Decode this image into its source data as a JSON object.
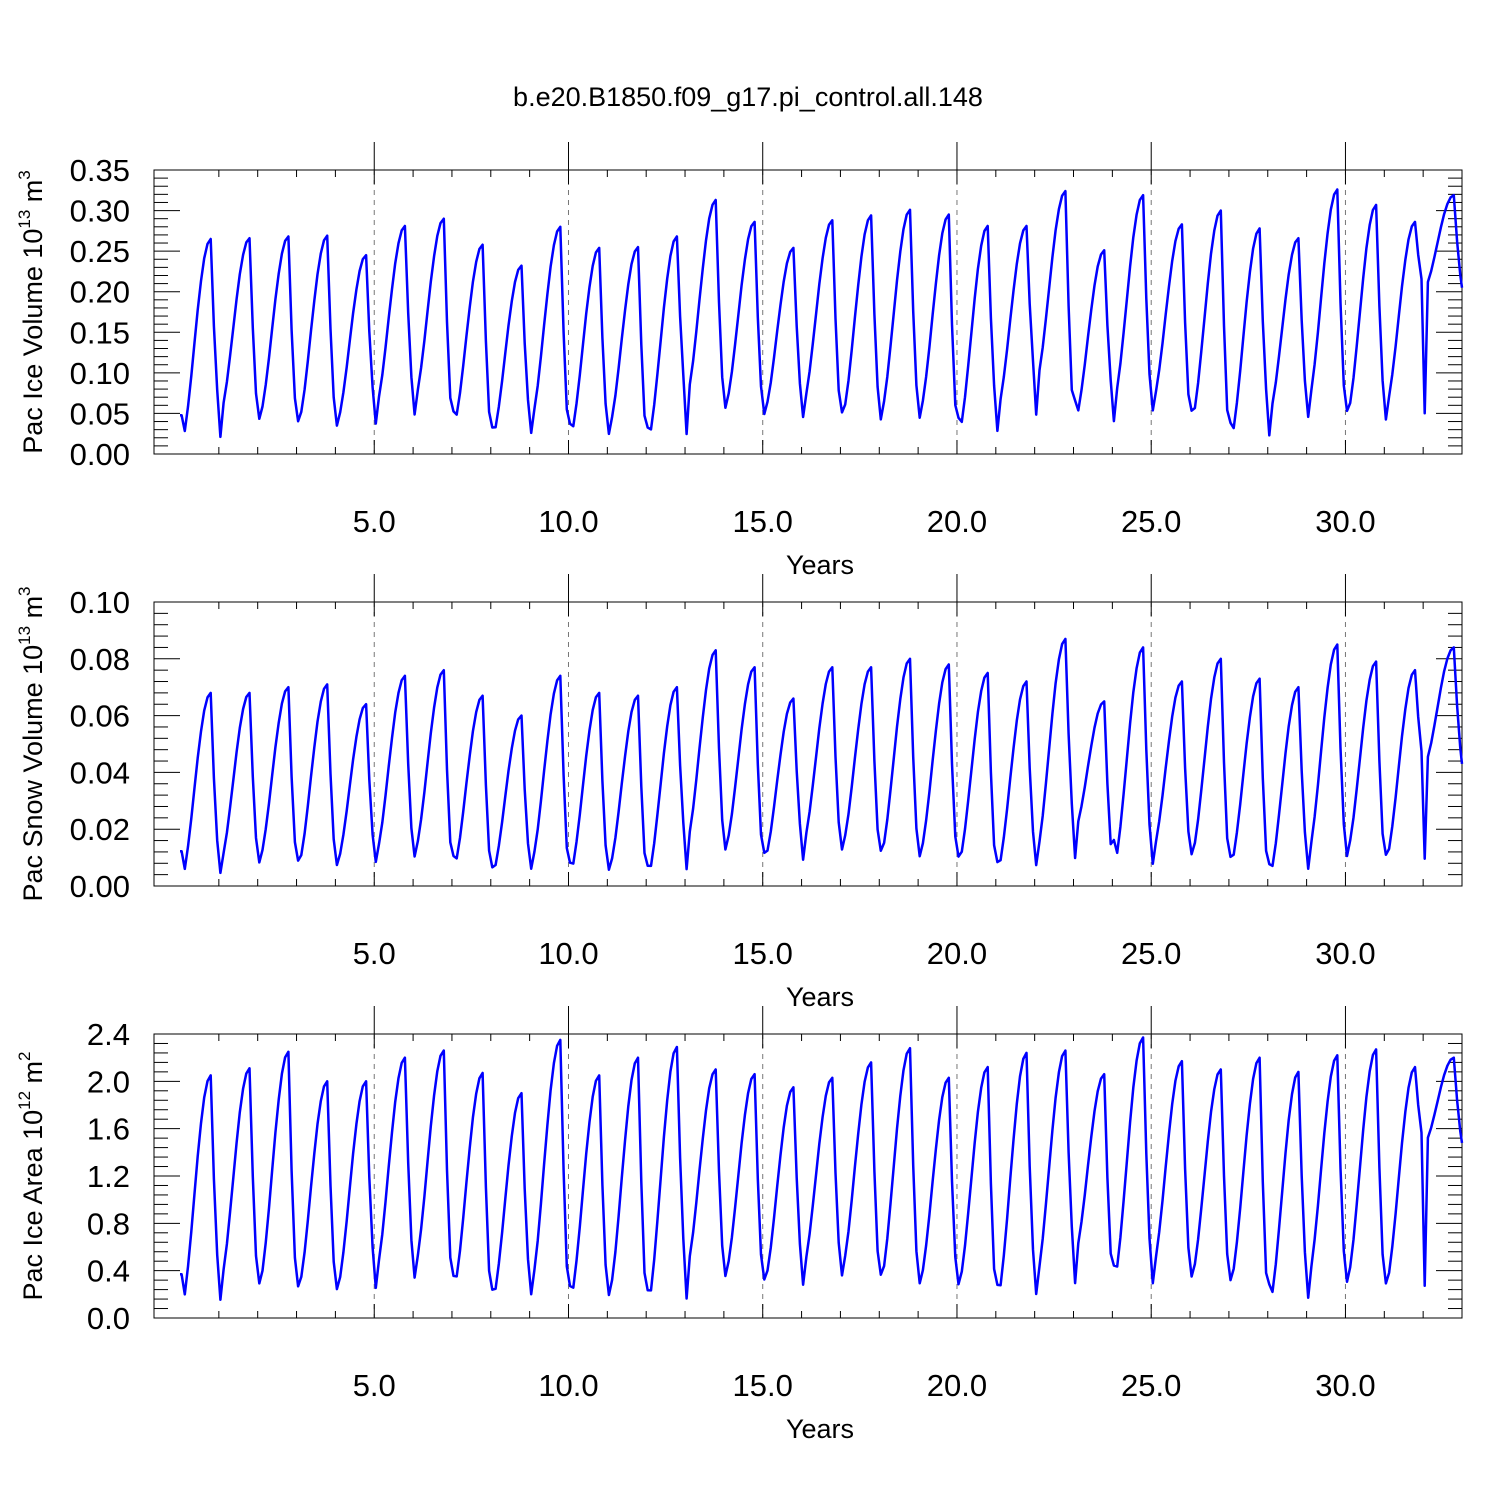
{
  "title": "b.e20.B1850.f09_g17.pi_control.all.148",
  "chart_data": [
    {
      "type": "line",
      "title": "b.e20.B1850.f09_g17.pi_control.all.148",
      "xlabel": "Years",
      "ylabel": "Pac Ice Volume 10^13 m^3",
      "ylabel_parts": {
        "base": "Pac Ice Volume 10",
        "exp1": "13",
        "mid": " m",
        "exp2": "3"
      },
      "xlim": [
        0,
        33
      ],
      "ylim": [
        0,
        0.35
      ],
      "yticks": [
        "0.00",
        "0.05",
        "0.10",
        "0.15",
        "0.20",
        "0.25",
        "0.30",
        "0.35"
      ],
      "xticks": [
        "5.0",
        "10.0",
        "15.0",
        "20.0",
        "25.0",
        "30.0"
      ],
      "grid_x_dashed": [
        5,
        10,
        15,
        20,
        25,
        30
      ],
      "color": "#0000ff",
      "years_peaks": [
        0.265,
        0.266,
        0.268,
        0.269,
        0.245,
        0.281,
        0.29,
        0.258,
        0.232,
        0.28,
        0.254,
        0.255,
        0.268,
        0.313,
        0.286,
        0.254,
        0.288,
        0.294,
        0.301,
        0.295,
        0.281,
        0.281,
        0.324,
        0.251,
        0.319,
        0.283,
        0.3,
        0.278,
        0.266,
        0.326,
        0.307,
        0.286,
        0.319
      ],
      "years_troughs": [
        0.013,
        0.05,
        0.045,
        0.038,
        0.039,
        0.057,
        0.066,
        0.035,
        0.02,
        0.041,
        0.02,
        0.032,
        0.015,
        0.071,
        0.061,
        0.052,
        0.061,
        0.046,
        0.05,
        0.051,
        0.024,
        0.054,
        0.089,
        0.041,
        0.066,
        0.064,
        0.041,
        0.016,
        0.049,
        0.063,
        0.047,
        0.057,
        0.205
      ]
    },
    {
      "type": "line",
      "xlabel": "Years",
      "ylabel": "Pac Snow Volume 10^13 m^3",
      "ylabel_parts": {
        "base": "Pac Snow Volume 10",
        "exp1": "13",
        "mid": " m",
        "exp2": "3"
      },
      "xlim": [
        0,
        33
      ],
      "ylim": [
        0,
        0.1
      ],
      "yticks": [
        "0.00",
        "0.02",
        "0.04",
        "0.06",
        "0.08",
        "0.10"
      ],
      "xticks": [
        "5.0",
        "10.0",
        "15.0",
        "20.0",
        "25.0",
        "30.0"
      ],
      "grid_x_dashed": [
        5,
        10,
        15,
        20,
        25,
        30
      ],
      "color": "#0000ff",
      "years_peaks": [
        0.068,
        0.068,
        0.07,
        0.071,
        0.064,
        0.074,
        0.076,
        0.067,
        0.06,
        0.074,
        0.068,
        0.067,
        0.07,
        0.083,
        0.077,
        0.066,
        0.077,
        0.077,
        0.08,
        0.078,
        0.075,
        0.072,
        0.087,
        0.065,
        0.084,
        0.072,
        0.08,
        0.073,
        0.07,
        0.085,
        0.079,
        0.076,
        0.084
      ],
      "years_troughs": [
        0.002,
        0.008,
        0.009,
        0.007,
        0.008,
        0.011,
        0.012,
        0.006,
        0.004,
        0.008,
        0.004,
        0.006,
        0.003,
        0.015,
        0.014,
        0.009,
        0.015,
        0.014,
        0.011,
        0.011,
        0.008,
        0.005,
        0.011,
        0.02,
        0.007,
        0.012,
        0.011,
        0.007,
        0.003,
        0.011,
        0.012,
        0.009,
        0.043
      ]
    },
    {
      "type": "line",
      "xlabel": "Years",
      "ylabel": "Pac Ice Area 10^12 m^2",
      "ylabel_parts": {
        "base": "Pac Ice Area 10",
        "exp1": "12",
        "mid": " m",
        "exp2": "2"
      },
      "xlim": [
        0,
        33
      ],
      "ylim": [
        0,
        2.4
      ],
      "yticks": [
        "0.0",
        "0.4",
        "0.8",
        "1.2",
        "1.6",
        "2.0",
        "2.4"
      ],
      "xticks": [
        "5.0",
        "10.0",
        "15.0",
        "20.0",
        "25.0",
        "30.0"
      ],
      "grid_x_dashed": [
        5,
        10,
        15,
        20,
        25,
        30
      ],
      "color": "#0000ff",
      "years_peaks": [
        2.05,
        2.11,
        2.25,
        2.0,
        2.0,
        2.2,
        2.26,
        2.07,
        1.9,
        2.35,
        2.05,
        2.2,
        2.29,
        2.1,
        2.06,
        1.95,
        2.03,
        2.16,
        2.28,
        2.03,
        2.12,
        2.24,
        2.26,
        2.06,
        2.37,
        2.17,
        2.1,
        2.2,
        2.08,
        2.22,
        2.27,
        2.12,
        2.2
      ],
      "years_troughs": [
        0.08,
        0.3,
        0.28,
        0.24,
        0.24,
        0.38,
        0.42,
        0.24,
        0.14,
        0.28,
        0.14,
        0.2,
        0.1,
        0.42,
        0.38,
        0.3,
        0.42,
        0.42,
        0.32,
        0.3,
        0.28,
        0.15,
        0.32,
        0.54,
        0.31,
        0.41,
        0.35,
        0.3,
        0.1,
        0.32,
        0.31,
        0.27,
        1.48
      ]
    }
  ]
}
